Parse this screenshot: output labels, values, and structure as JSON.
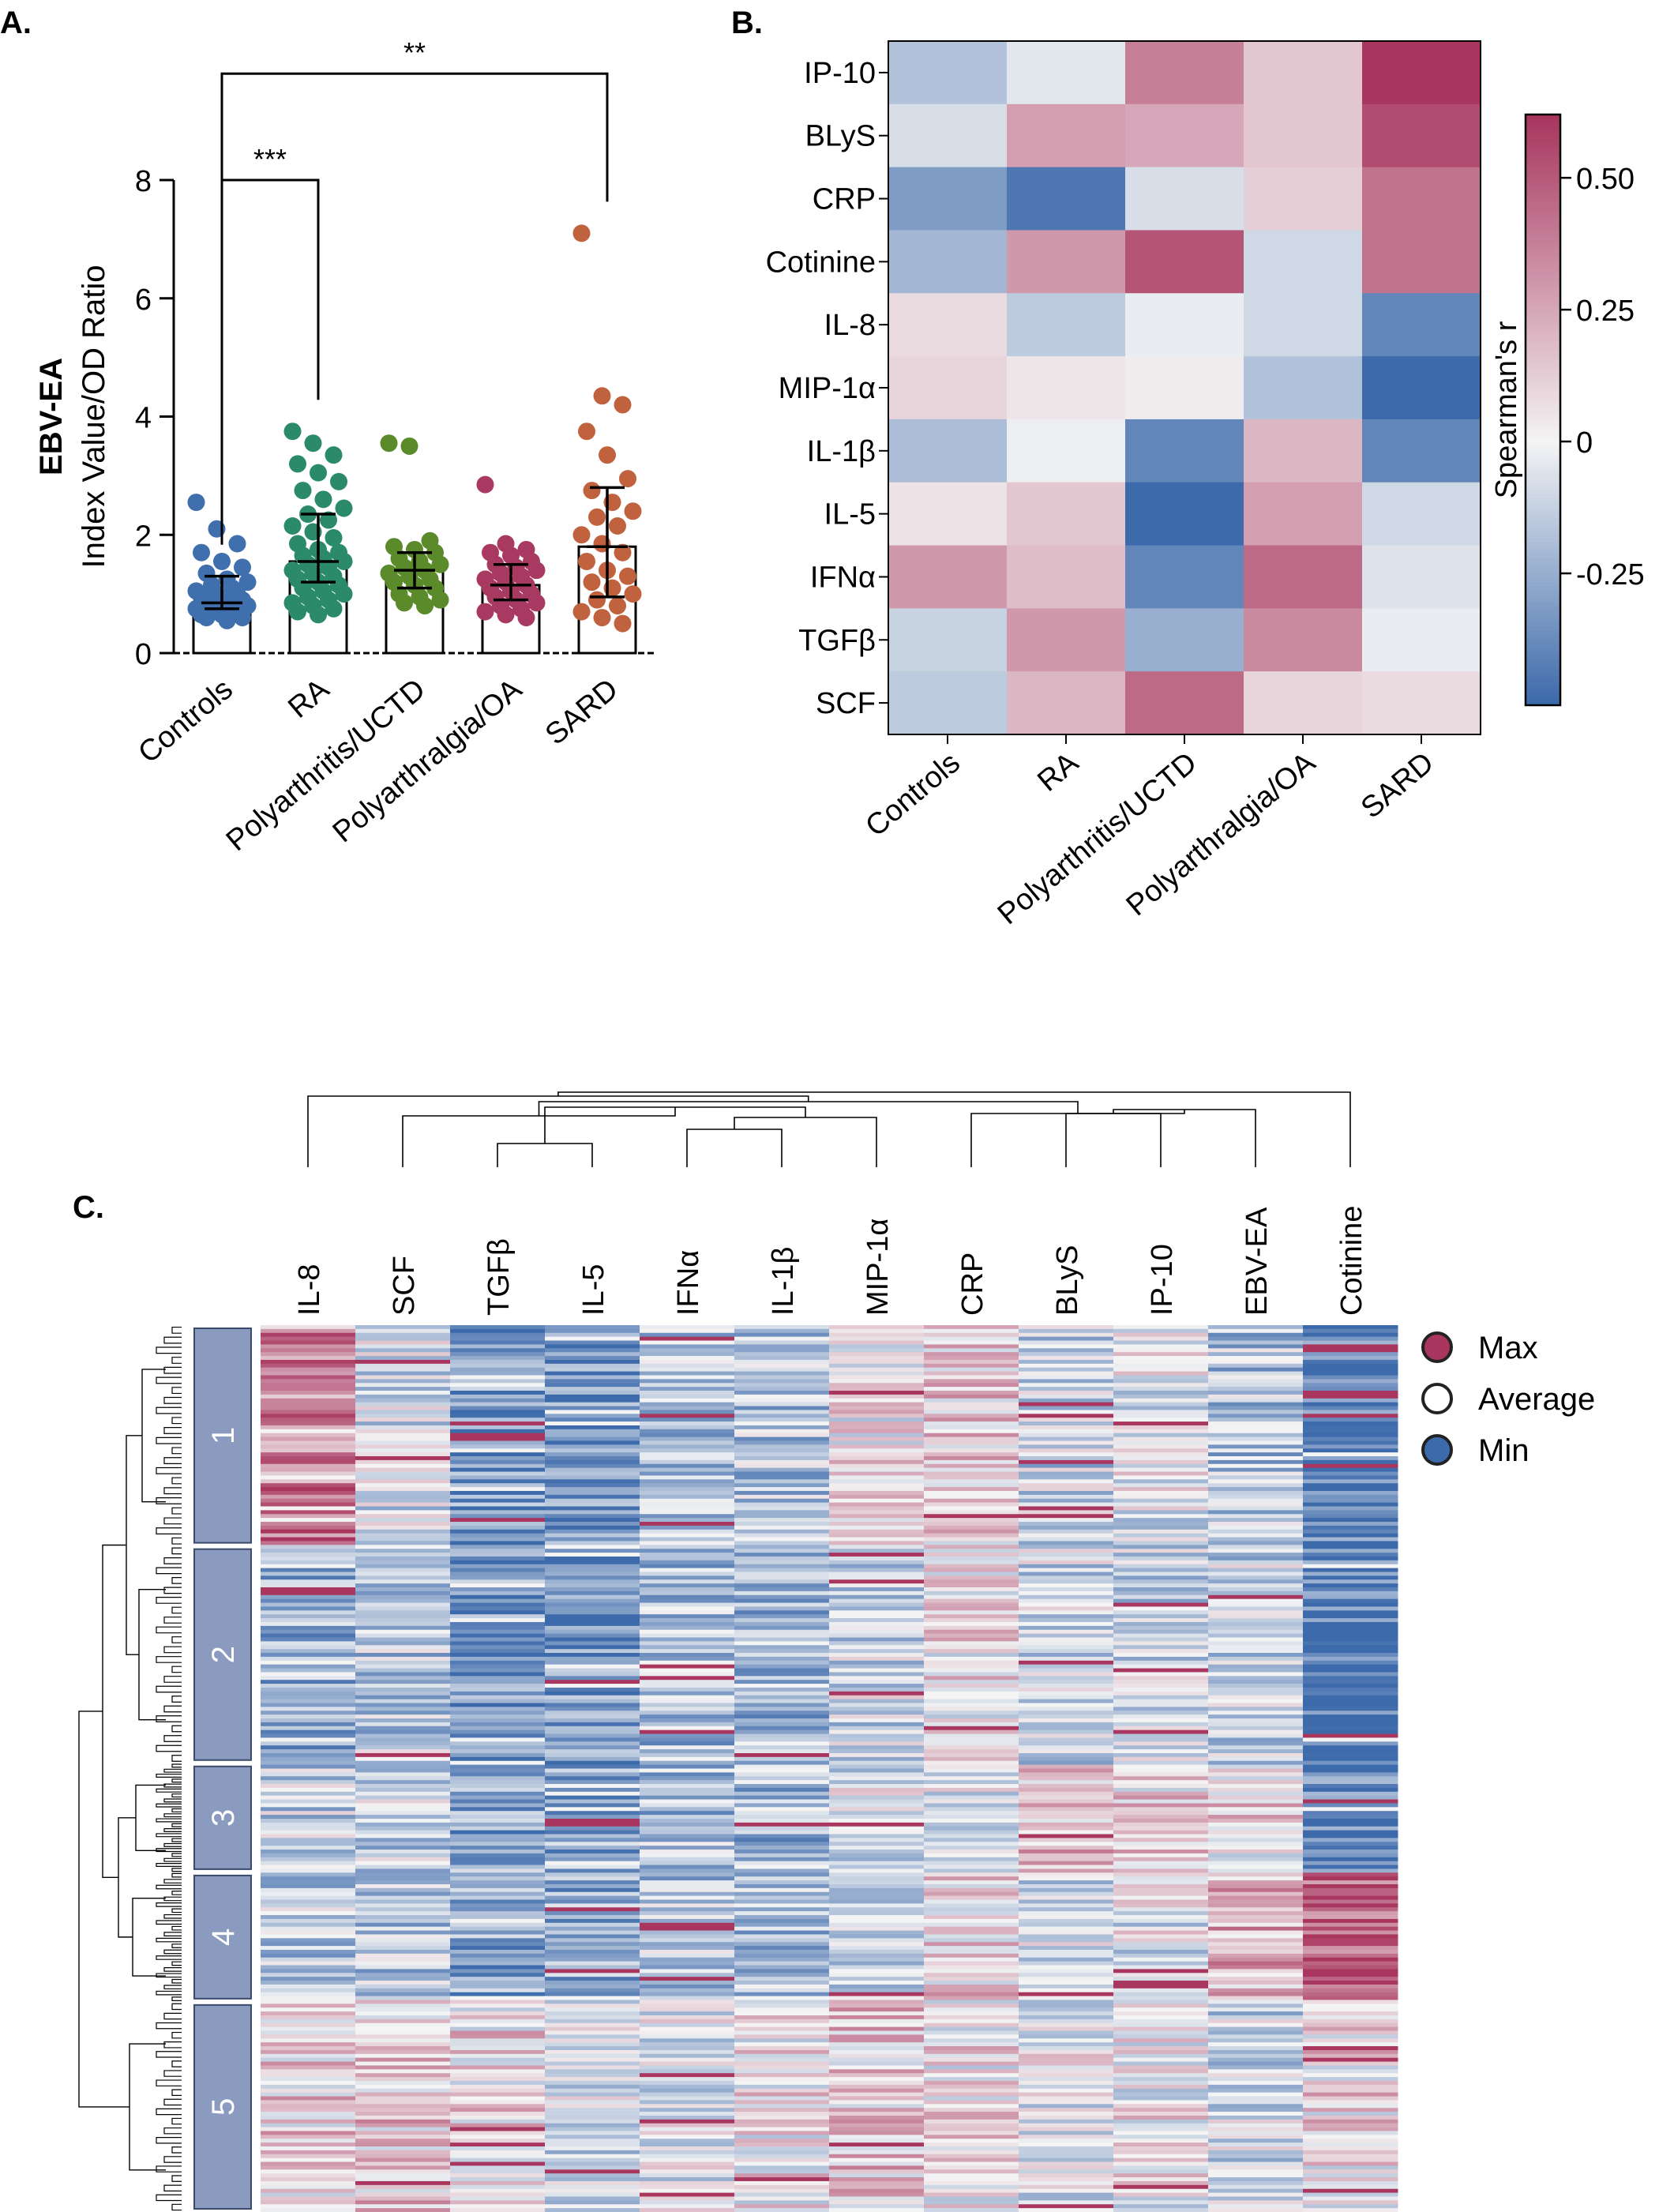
{
  "panels": {
    "a": {
      "label": "A."
    },
    "b": {
      "label": "B."
    },
    "c": {
      "label": "C."
    }
  },
  "colors": {
    "max": "#a8365e",
    "mid": "#f4f4f4",
    "min": "#3d6aab"
  },
  "chart_data": [
    {
      "id": "A",
      "type": "scatter",
      "title": "",
      "ylabel_bold": "EBV-EA",
      "ylabel": "Index Value/OD Ratio",
      "ylim": [
        0,
        8
      ],
      "yticks": [
        0,
        2,
        4,
        6,
        8
      ],
      "categories": [
        "Controls",
        "RA",
        "Polyarthritis/UCTD",
        "Polyarthralgia/OA",
        "SARD"
      ],
      "group_colors": [
        "#3f6fad",
        "#2a8a6a",
        "#5a8a2a",
        "#a83a62",
        "#c0623e"
      ],
      "bar_heights": [
        0.85,
        1.55,
        1.4,
        1.15,
        1.8
      ],
      "error_low": [
        0.75,
        1.2,
        1.1,
        0.9,
        0.95
      ],
      "error_high": [
        1.3,
        2.35,
        1.7,
        1.5,
        2.8
      ],
      "points": [
        [
          2.55,
          2.1,
          1.85,
          1.7,
          1.55,
          1.45,
          1.35,
          1.25,
          1.2,
          1.15,
          1.1,
          1.05,
          1.0,
          1.0,
          0.95,
          0.9,
          0.9,
          0.85,
          0.85,
          0.8,
          0.8,
          0.75,
          0.75,
          0.7,
          0.7,
          0.65,
          0.65,
          0.6,
          0.6,
          0.55
        ],
        [
          3.75,
          3.55,
          3.35,
          3.2,
          3.05,
          2.9,
          2.75,
          2.6,
          2.45,
          2.35,
          2.25,
          2.15,
          2.05,
          1.95,
          1.85,
          1.75,
          1.7,
          1.65,
          1.6,
          1.55,
          1.5,
          1.45,
          1.4,
          1.35,
          1.3,
          1.25,
          1.2,
          1.15,
          1.1,
          1.05,
          1.0,
          0.95,
          0.9,
          0.85,
          0.8,
          0.75,
          0.7,
          0.65
        ],
        [
          3.55,
          3.5,
          1.9,
          1.8,
          1.75,
          1.7,
          1.6,
          1.55,
          1.5,
          1.45,
          1.4,
          1.35,
          1.3,
          1.25,
          1.2,
          1.15,
          1.1,
          1.0,
          0.95,
          0.9,
          0.85,
          0.8
        ],
        [
          2.85,
          1.85,
          1.75,
          1.7,
          1.65,
          1.55,
          1.5,
          1.45,
          1.4,
          1.35,
          1.3,
          1.25,
          1.2,
          1.15,
          1.1,
          1.05,
          1.0,
          0.95,
          0.9,
          0.85,
          0.8,
          0.75,
          0.7,
          0.65,
          0.6
        ],
        [
          7.1,
          4.35,
          4.2,
          3.75,
          3.35,
          2.95,
          2.75,
          2.55,
          2.4,
          2.3,
          2.15,
          2.0,
          1.85,
          1.7,
          1.55,
          1.4,
          1.3,
          1.2,
          1.1,
          1.0,
          0.9,
          0.8,
          0.7,
          0.6,
          0.5
        ]
      ],
      "annotations": [
        {
          "text": "***",
          "from": 0,
          "to": 1,
          "y": 8.0
        },
        {
          "text": "**",
          "from": 0,
          "to": 4,
          "y": 9.8
        }
      ]
    },
    {
      "id": "B",
      "type": "heatmap",
      "title": "",
      "rows": [
        "IP-10",
        "BLyS",
        "CRP",
        "Cotinine",
        "IL-8",
        "MIP-1α",
        "IL-1β",
        "IL-5",
        "IFNα",
        "TGFβ",
        "SCF"
      ],
      "columns": [
        "Controls",
        "RA",
        "Polyarthritis/UCTD",
        "Polyarthralgia/OA",
        "SARD"
      ],
      "values": [
        [
          -0.18,
          -0.05,
          0.38,
          0.15,
          0.65
        ],
        [
          -0.08,
          0.28,
          0.25,
          0.15,
          0.55
        ],
        [
          -0.32,
          -0.45,
          -0.08,
          0.12,
          0.42
        ],
        [
          -0.22,
          0.3,
          0.52,
          -0.1,
          0.42
        ],
        [
          0.08,
          -0.15,
          -0.03,
          -0.1,
          -0.4
        ],
        [
          0.1,
          0.05,
          0.03,
          -0.18,
          -0.5
        ],
        [
          -0.2,
          -0.02,
          -0.4,
          0.2,
          -0.4
        ],
        [
          0.06,
          0.15,
          -0.55,
          0.28,
          -0.1
        ],
        [
          0.3,
          0.18,
          -0.4,
          0.45,
          -0.06
        ],
        [
          -0.12,
          0.3,
          -0.25,
          0.35,
          -0.03
        ],
        [
          -0.15,
          0.2,
          0.45,
          0.1,
          0.08
        ]
      ],
      "colorbar_label": "Spearman's r",
      "colorbar_ticks": [
        0.5,
        0.25,
        0,
        -0.25
      ],
      "colorbar_tick_labels": [
        "0.50",
        "0.25",
        "0",
        "-0.25"
      ],
      "vmin": -0.5,
      "vmax": 0.62
    },
    {
      "id": "C",
      "type": "heatmap",
      "title": "",
      "columns": [
        "IL-8",
        "SCF",
        "TGFβ",
        "IL-5",
        "IFNα",
        "IL-1β",
        "MIP-1α",
        "CRP",
        "BLyS",
        "IP-10",
        "EBV-EA",
        "Cotinine"
      ],
      "clusters": [
        "1",
        "2",
        "3",
        "4",
        "5"
      ],
      "cluster_bounds": [
        0,
        0.249,
        0.494,
        0.617,
        0.763,
        1.0
      ],
      "column_base": [
        [
          0.55,
          -0.15,
          -0.65,
          -0.7,
          -0.35,
          -0.35,
          0.05,
          0.15,
          -0.25,
          -0.1,
          -0.35,
          -0.85
        ],
        [
          -0.5,
          -0.3,
          -0.65,
          -0.65,
          -0.4,
          -0.45,
          -0.2,
          0.05,
          -0.2,
          -0.25,
          -0.25,
          -0.9
        ],
        [
          -0.25,
          -0.25,
          -0.6,
          -0.55,
          -0.4,
          -0.45,
          -0.15,
          -0.1,
          0.25,
          0.1,
          0.1,
          -0.85
        ],
        [
          -0.3,
          -0.3,
          -0.55,
          -0.55,
          -0.35,
          -0.4,
          -0.2,
          0.15,
          -0.2,
          -0.1,
          0.35,
          0.85
        ],
        [
          0.15,
          0.2,
          0.1,
          -0.15,
          -0.1,
          0.05,
          0.2,
          0.05,
          -0.1,
          0.0,
          -0.2,
          0.1
        ]
      ],
      "legend": [
        {
          "label": "Max",
          "color": "#a8365e"
        },
        {
          "label": "Average",
          "color": "#ffffff"
        },
        {
          "label": "Min",
          "color": "#3d6aab"
        }
      ]
    }
  ]
}
